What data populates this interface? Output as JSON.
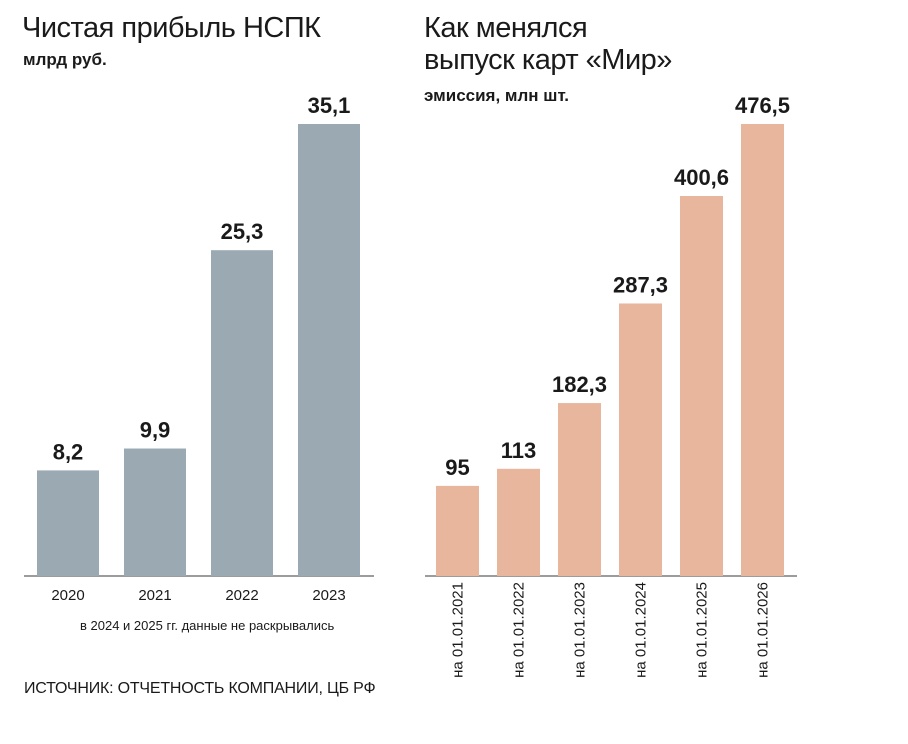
{
  "chart_data": [
    {
      "type": "bar",
      "title": "Чистая прибыль НСПК",
      "subtitle": "млрд руб.",
      "categories": [
        "2020",
        "2021",
        "2022",
        "2023"
      ],
      "values": [
        8.2,
        9.9,
        25.3,
        35.1
      ],
      "value_labels": [
        "8,2",
        "9,9",
        "25,3",
        "35,1"
      ],
      "note": "в 2024 и 2025 гг. данные не раскрывались",
      "ylim": [
        0,
        35.1
      ],
      "grid": false,
      "color": "#9baab2"
    },
    {
      "type": "bar",
      "title_lines": [
        "Как менялся",
        "выпуск карт «Мир»"
      ],
      "subtitle": "эмиссия, млн шт.",
      "categories": [
        "на 01.01.2021",
        "на 01.01.2022",
        "на 01.01.2023",
        "на 01.01.2024",
        "на 01.01.2025",
        "на 01.01.2026"
      ],
      "values": [
        95,
        113,
        182.3,
        287.3,
        400.6,
        476.5
      ],
      "value_labels": [
        "95",
        "113",
        "182,3",
        "287,3",
        "400,6",
        "476,5"
      ],
      "ylim": [
        0,
        476.5
      ],
      "grid": false,
      "color": "#e8b69c"
    }
  ],
  "source": "ИСТОЧНИК: ОТЧЕТНОСТЬ КОМПАНИИ, ЦБ РФ"
}
